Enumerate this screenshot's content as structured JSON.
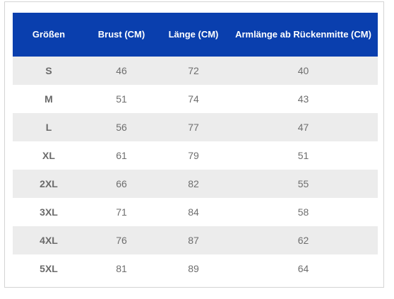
{
  "headers": [
    "Größen",
    "Brust (CM)",
    "Länge (CM)",
    "Armlänge ab Rückenmitte (CM)"
  ],
  "rows": [
    [
      "S",
      "46",
      "72",
      "40"
    ],
    [
      "M",
      "51",
      "74",
      "43"
    ],
    [
      "L",
      "56",
      "77",
      "47"
    ],
    [
      "XL",
      "61",
      "79",
      "51"
    ],
    [
      "2XL",
      "66",
      "82",
      "55"
    ],
    [
      "3XL",
      "71",
      "84",
      "58"
    ],
    [
      "4XL",
      "76",
      "87",
      "62"
    ],
    [
      "5XL",
      "81",
      "89",
      "64"
    ]
  ],
  "colors": {
    "header_bg": "#0a3fae",
    "header_text": "#ffffff",
    "row_alt_bg": "#ececec",
    "cell_text": "#6e6e6e"
  }
}
